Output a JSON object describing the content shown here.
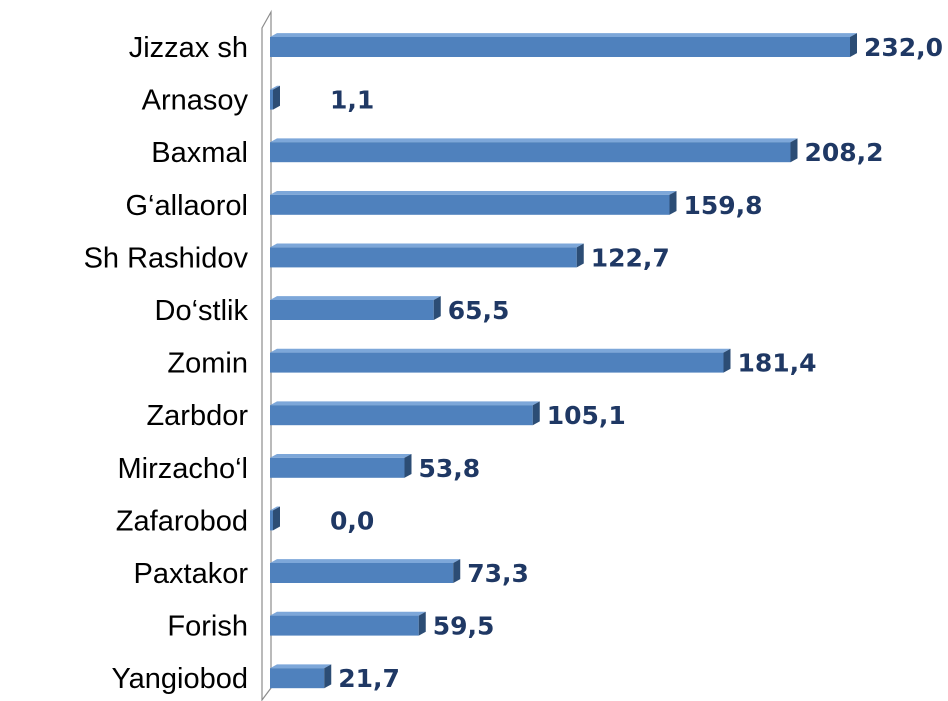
{
  "chart_data": {
    "type": "bar",
    "orientation": "horizontal",
    "categories": [
      "Jizzax sh",
      "Arnasoy",
      "Baxmal",
      "G‘allaorol",
      "Sh Rashidov",
      "Do‘stlik",
      "Zomin",
      "Zarbdor",
      "Mirzacho‘l",
      "Zafarobod",
      "Paxtakor",
      "Forish",
      "Yangiobod"
    ],
    "values": [
      232.0,
      1.1,
      208.2,
      159.8,
      122.7,
      65.5,
      181.4,
      105.1,
      53.8,
      0.0,
      73.3,
      59.5,
      21.7
    ],
    "value_labels": [
      "232,0",
      "1,1",
      "208,2",
      "159,8",
      "122,7",
      "65,5",
      "181,4",
      "105,1",
      "53,8",
      "0,0",
      "73,3",
      "59,5",
      "21,7"
    ],
    "xlim": [
      0,
      240
    ],
    "grid": false,
    "legend": "none",
    "colors": {
      "bar_front": "#4f81bd",
      "bar_top": "#7da7d9",
      "bar_side": "#2c4d75",
      "label": "#1f3864",
      "axis": "#8c8c8c"
    }
  }
}
